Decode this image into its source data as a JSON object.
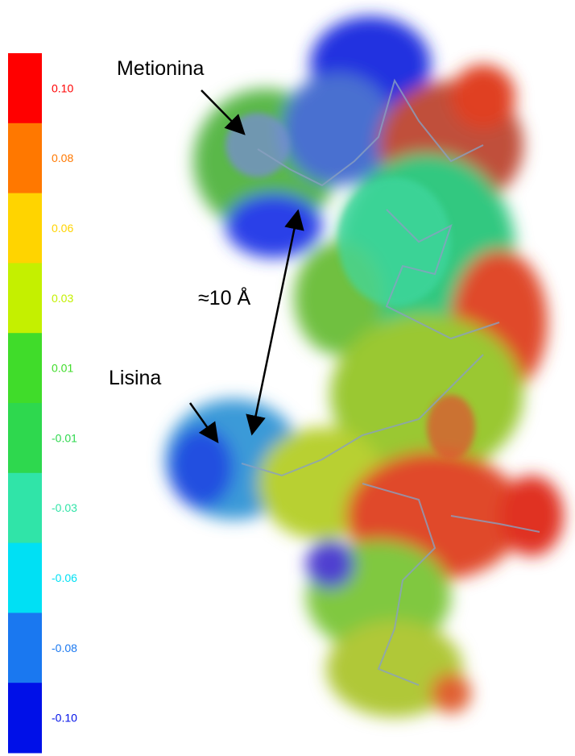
{
  "legend": {
    "items": [
      {
        "label": "0.10",
        "color": "#ff0000"
      },
      {
        "label": "0.08",
        "color": "#ff7800"
      },
      {
        "label": "0.06",
        "color": "#ffd400"
      },
      {
        "label": "0.03",
        "color": "#c4f000"
      },
      {
        "label": "0.01",
        "color": "#40dc2a"
      },
      {
        "label": "-0.01",
        "color": "#2ed84e"
      },
      {
        "label": "-0.03",
        "color": "#30e4a8"
      },
      {
        "label": "-0.06",
        "color": "#00e0f4"
      },
      {
        "label": "-0.08",
        "color": "#1a78f0"
      },
      {
        "label": "-0.10",
        "color": "#0010e8"
      }
    ]
  },
  "annotations": {
    "methionine": "Metionina",
    "lysine": "Lisina",
    "distance": "≈10 Å"
  }
}
